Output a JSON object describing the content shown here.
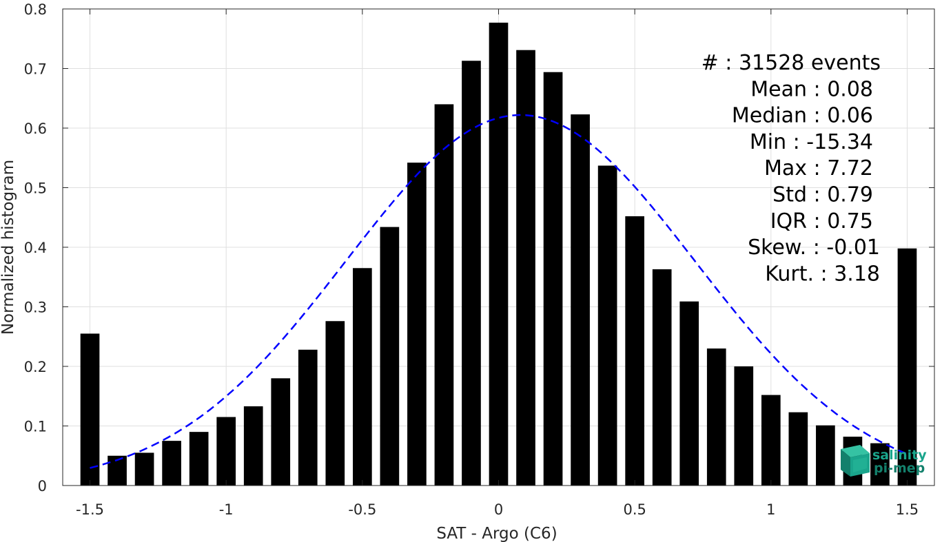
{
  "chart_data": {
    "type": "bar",
    "xlabel": "SAT - Argo (C6)",
    "ylabel": "Normalized histogram",
    "xlim": [
      -1.6,
      1.6
    ],
    "ylim": [
      0,
      0.8
    ],
    "grid": true,
    "xticks": [
      -1.5,
      -1,
      -0.5,
      0,
      0.5,
      1,
      1.5
    ],
    "xtick_labels": [
      "-1.5",
      "-1",
      "-0.5",
      "0",
      "0.5",
      "1",
      "1.5"
    ],
    "yticks": [
      0,
      0.1,
      0.2,
      0.3,
      0.4,
      0.5,
      0.6,
      0.7,
      0.8
    ],
    "ytick_labels": [
      "0",
      "0.1",
      "0.2",
      "0.3",
      "0.4",
      "0.5",
      "0.6",
      "0.7",
      "0.8"
    ],
    "bar_color": "#000000",
    "bin_width": 0.1,
    "x": [
      -1.5,
      -1.4,
      -1.3,
      -1.2,
      -1.1,
      -1.0,
      -0.9,
      -0.8,
      -0.7,
      -0.6,
      -0.5,
      -0.4,
      -0.3,
      -0.2,
      -0.1,
      0.0,
      0.1,
      0.2,
      0.3,
      0.4,
      0.5,
      0.6,
      0.7,
      0.8,
      0.9,
      1.0,
      1.1,
      1.2,
      1.3,
      1.4,
      1.5
    ],
    "values": [
      0.255,
      0.05,
      0.055,
      0.075,
      0.09,
      0.115,
      0.133,
      0.18,
      0.228,
      0.276,
      0.365,
      0.434,
      0.542,
      0.64,
      0.713,
      0.777,
      0.731,
      0.694,
      0.623,
      0.537,
      0.452,
      0.363,
      0.309,
      0.23,
      0.2,
      0.152,
      0.123,
      0.101,
      0.082,
      0.071,
      0.398
    ],
    "fit": {
      "style": "dashed",
      "color": "#0000ff",
      "mean": 0.08,
      "std": 0.64,
      "peak": 0.622,
      "x_range": [
        -1.5,
        1.5
      ]
    },
    "stats_lines": [
      "#  : 31528 events",
      "Mean : 0.08",
      "Median : 0.06",
      "Min : -15.34",
      "Max : 7.72",
      "Std : 0.79",
      "IQR : 0.75",
      "Skew. : -0.01",
      "Kurt. : 3.18"
    ]
  },
  "logo": {
    "line1": "salinity",
    "line2": "pi-mep",
    "color": "#1aa58c"
  }
}
